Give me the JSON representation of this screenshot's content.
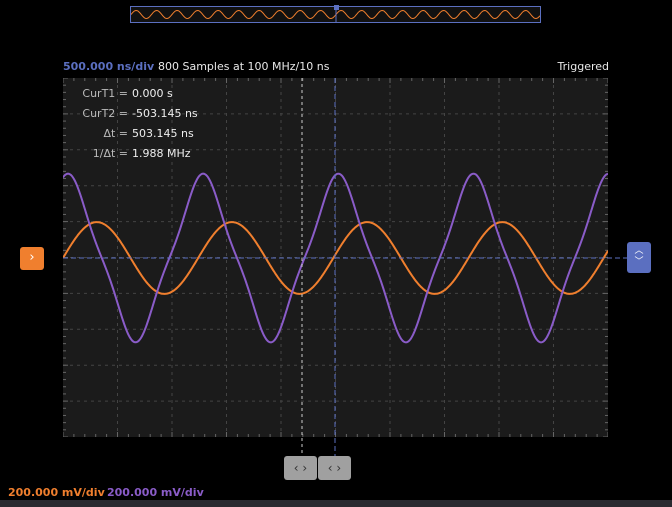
{
  "header": {
    "timebase": "500.000 ns/div",
    "samples_info": "800 Samples at 100 MHz/10 ns",
    "trigger_status": "Triggered"
  },
  "measurements": [
    {
      "label": "CurT1 =",
      "value": "0.000 s"
    },
    {
      "label": "CurT2 =",
      "value": "-503.145 ns"
    },
    {
      "label": "Δt =",
      "value": "503.145 ns"
    },
    {
      "label": "1/Δt =",
      "value": "1.988 MHz"
    }
  ],
  "footer": {
    "ch1_scale": "200.000 mV/div",
    "ch2_scale": "200.000 mV/div"
  },
  "cursor_buttons": [
    "‹ ›",
    "‹ ›"
  ],
  "icons": {
    "left_marker": "chevron-right-icon",
    "right_marker": "chevron-up-down-icon"
  },
  "colors": {
    "ch1": "#f07f2e",
    "ch2": "#8a5cc8",
    "accent": "#5b6fc0",
    "plot_bg": "#1b1b1b"
  },
  "chart_data": {
    "type": "line",
    "x_divisions": 10,
    "y_divisions": 10,
    "grid": true,
    "time_per_div_ns": 500,
    "series": [
      {
        "channel": 1,
        "color": "#f07f2e",
        "amplitude_mV": 200,
        "period_ns": 1240,
        "shape": "sine"
      },
      {
        "channel": 2,
        "color": "#8a5cc8",
        "amplitude_mV": 470,
        "period_ns": 1240,
        "shape": "triangle-like"
      }
    ]
  }
}
